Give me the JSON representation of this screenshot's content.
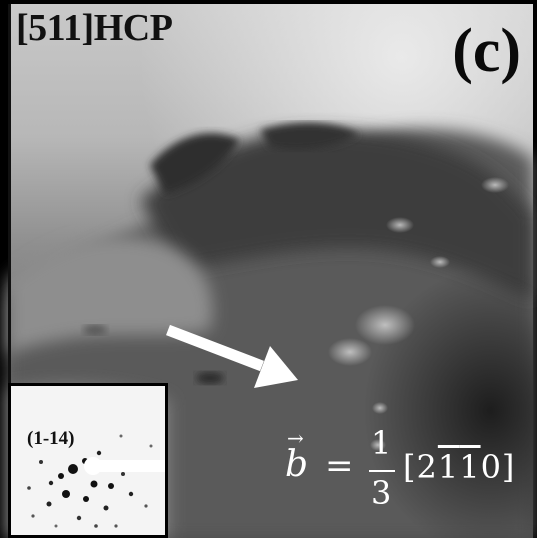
{
  "figure": {
    "zone_axis_label": "[511]HCP",
    "panel_label": "(c)",
    "inset": {
      "spot_label": "(1-14)"
    },
    "burgers_vector": {
      "symbol": "b",
      "equals": "=",
      "numerator": "1",
      "denominator": "3",
      "open_bracket": "[",
      "d1": "2",
      "d2": "1",
      "d3": "1",
      "d4": "0",
      "close_bracket": "]"
    }
  }
}
